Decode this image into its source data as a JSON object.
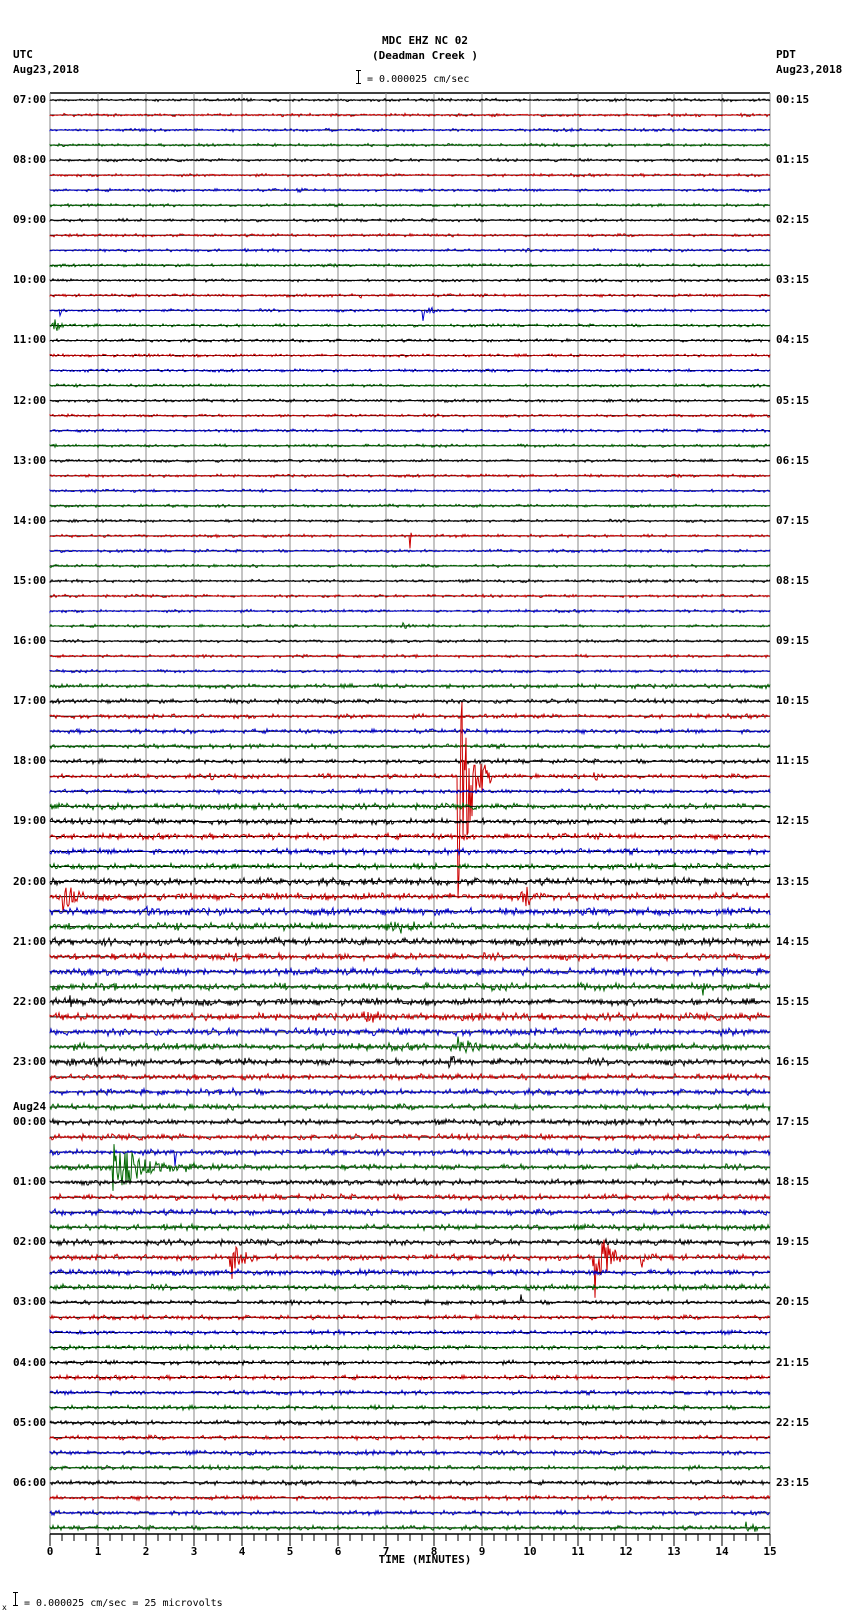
{
  "header": {
    "station": "MDC EHZ NC 02",
    "site": "(Deadman Creek )",
    "scale_text": "= 0.000025 cm/sec",
    "left_tz": "UTC",
    "left_date": "Aug23,2018",
    "right_tz": "PDT",
    "right_date": "Aug23,2018"
  },
  "footer": {
    "scale_text": "= 0.000025 cm/sec =      25 microvolts",
    "prefix": "x"
  },
  "chart_data": {
    "type": "line",
    "title": "MDC EHZ NC 02 (Deadman Creek )",
    "xlabel": "TIME (MINUTES)",
    "ylabel": "",
    "xlim": [
      0,
      15
    ],
    "x_ticks": [
      "0",
      "1",
      "2",
      "3",
      "4",
      "5",
      "6",
      "7",
      "8",
      "9",
      "10",
      "11",
      "12",
      "13",
      "14",
      "15"
    ],
    "grid": true,
    "trace_colors": [
      "#000000",
      "#cc0000",
      "#0000cc",
      "#006600"
    ],
    "traces_per_hour": 4,
    "left_labels": [
      "07:00",
      "08:00",
      "09:00",
      "10:00",
      "11:00",
      "12:00",
      "13:00",
      "14:00",
      "15:00",
      "16:00",
      "17:00",
      "18:00",
      "19:00",
      "20:00",
      "21:00",
      "22:00",
      "23:00",
      "00:00",
      "01:00",
      "02:00",
      "03:00",
      "04:00",
      "05:00",
      "06:00"
    ],
    "day_change_label": {
      "hour_index": 17,
      "text": "Aug24"
    },
    "right_labels": [
      "00:15",
      "01:15",
      "02:15",
      "03:15",
      "04:15",
      "05:15",
      "06:15",
      "07:15",
      "08:15",
      "09:15",
      "10:15",
      "11:15",
      "12:15",
      "13:15",
      "14:15",
      "15:15",
      "16:15",
      "17:15",
      "18:15",
      "19:15",
      "20:15",
      "21:15",
      "22:15",
      "23:15"
    ],
    "noise_levels": [
      1,
      1,
      1,
      1,
      1,
      1,
      1,
      1,
      1,
      1,
      1,
      1,
      1,
      1,
      1,
      1,
      1,
      1,
      1,
      1,
      1,
      1,
      1,
      1,
      1,
      1,
      1,
      1,
      1,
      1,
      1,
      1,
      1,
      1,
      1,
      1,
      1,
      1,
      1,
      1.5,
      1.5,
      1.5,
      1.5,
      1.5,
      1.5,
      1.5,
      1.5,
      2,
      2,
      2,
      2,
      2,
      2.5,
      2.5,
      2.5,
      2.5,
      2.5,
      2.5,
      2.5,
      2.5,
      2.5,
      2.5,
      2.5,
      2.5,
      2.5,
      2,
      2,
      2,
      2,
      2,
      2,
      2,
      2,
      2,
      2,
      2,
      2,
      2,
      2,
      2,
      1.5,
      1.5,
      1.5,
      1.5,
      1.5,
      1.5,
      1.5,
      1.5,
      1.5,
      1.5,
      1.5,
      1.5,
      1.5,
      1.5,
      1.5,
      1.5
    ],
    "events": [
      {
        "trace": 6,
        "minute": 5.1,
        "amp": 5,
        "dur": 0.2
      },
      {
        "trace": 10,
        "minute": 9.9,
        "amp": 6,
        "dur": 0.15
      },
      {
        "trace": 13,
        "minute": 6.45,
        "amp": 4,
        "dur": 0.1
      },
      {
        "trace": 14,
        "minute": 0.2,
        "amp": 6,
        "dur": 0.15
      },
      {
        "trace": 14,
        "minute": 7.75,
        "amp": 14,
        "dur": 0.4
      },
      {
        "trace": 15,
        "minute": 0.05,
        "amp": 12,
        "dur": 0.4
      },
      {
        "trace": 16,
        "minute": 14.8,
        "amp": 4,
        "dur": 0.1
      },
      {
        "trace": 29,
        "minute": 7.5,
        "amp": 14,
        "dur": 0.05
      },
      {
        "trace": 35,
        "minute": 7.3,
        "amp": 6,
        "dur": 0.4
      },
      {
        "trace": 40,
        "minute": 3.8,
        "amp": 5,
        "dur": 0.2
      },
      {
        "trace": 45,
        "minute": 8.5,
        "amp": 150,
        "dur": 0.7
      },
      {
        "trace": 45,
        "minute": 3.3,
        "amp": 5,
        "dur": 0.4
      },
      {
        "trace": 45,
        "minute": 5.6,
        "amp": 5,
        "dur": 0.4
      },
      {
        "trace": 45,
        "minute": 11.3,
        "amp": 8,
        "dur": 0.5
      },
      {
        "trace": 48,
        "minute": 7.8,
        "amp": 7,
        "dur": 0.1
      },
      {
        "trace": 48,
        "minute": 13.0,
        "amp": 10,
        "dur": 0.1
      },
      {
        "trace": 53,
        "minute": 0.25,
        "amp": 22,
        "dur": 0.5
      },
      {
        "trace": 53,
        "minute": 9.8,
        "amp": 18,
        "dur": 0.6
      },
      {
        "trace": 54,
        "minute": 2.0,
        "amp": 7,
        "dur": 0.5
      },
      {
        "trace": 55,
        "minute": 7.0,
        "amp": 7,
        "dur": 1.2
      },
      {
        "trace": 57,
        "minute": 3.8,
        "amp": 7,
        "dur": 0.5
      },
      {
        "trace": 59,
        "minute": 13.6,
        "amp": 10,
        "dur": 0.15
      },
      {
        "trace": 60,
        "minute": 0.4,
        "amp": 8,
        "dur": 0.6
      },
      {
        "trace": 61,
        "minute": 6.5,
        "amp": 6,
        "dur": 1.0
      },
      {
        "trace": 63,
        "minute": 8.5,
        "amp": 9,
        "dur": 0.8
      },
      {
        "trace": 64,
        "minute": 0.8,
        "amp": 8,
        "dur": 0.3
      },
      {
        "trace": 64,
        "minute": 8.3,
        "amp": 9,
        "dur": 0.5
      },
      {
        "trace": 66,
        "minute": 3.8,
        "amp": 6,
        "dur": 0.2
      },
      {
        "trace": 70,
        "minute": 2.6,
        "amp": 22,
        "dur": 0.05
      },
      {
        "trace": 71,
        "minute": 1.3,
        "amp": 28,
        "dur": 1.8
      },
      {
        "trace": 72,
        "minute": 7.6,
        "amp": 6,
        "dur": 0.1
      },
      {
        "trace": 77,
        "minute": 11.3,
        "amp": 55,
        "dur": 0.7
      },
      {
        "trace": 77,
        "minute": 3.75,
        "amp": 30,
        "dur": 0.6
      },
      {
        "trace": 77,
        "minute": 12.3,
        "amp": 12,
        "dur": 0.2
      },
      {
        "trace": 80,
        "minute": 9.8,
        "amp": 14,
        "dur": 0.1
      },
      {
        "trace": 95,
        "minute": 14.5,
        "amp": 7,
        "dur": 0.5
      }
    ]
  }
}
